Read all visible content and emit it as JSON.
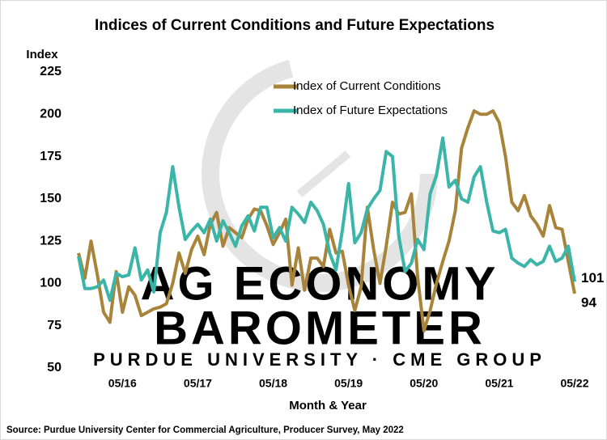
{
  "chart_data": {
    "type": "line",
    "title": "Indices of Current Conditions and Future Expectations",
    "y_label": "Index",
    "x_label": "Month & Year",
    "source": "Source: Purdue University Center for Commercial Agriculture, Producer Survey, May 2022",
    "watermark": [
      "AG ECONOMY",
      "BAROMETER",
      "PURDUE UNIVERSITY · CME GROUP"
    ],
    "categories": [
      null,
      null,
      null,
      null,
      null,
      null,
      null,
      "05/16",
      null,
      null,
      null,
      null,
      null,
      null,
      null,
      null,
      null,
      null,
      null,
      "05/17",
      null,
      null,
      null,
      null,
      null,
      null,
      null,
      null,
      null,
      null,
      null,
      "05/18",
      null,
      null,
      null,
      null,
      null,
      null,
      null,
      null,
      null,
      null,
      null,
      "05/19",
      null,
      null,
      null,
      null,
      null,
      null,
      null,
      null,
      null,
      null,
      null,
      "05/20",
      null,
      null,
      null,
      null,
      null,
      null,
      null,
      null,
      null,
      null,
      null,
      "05/21",
      null,
      null,
      null,
      null,
      null,
      null,
      null,
      null,
      null,
      null,
      null,
      "05/22"
    ],
    "series": [
      {
        "name": "Index of Current Conditions",
        "color": "#a8843a",
        "values": [
          118,
          103,
          125,
          105,
          83,
          77,
          107,
          83,
          98,
          93,
          81,
          83,
          85,
          86,
          88,
          100,
          118,
          106,
          120,
          128,
          117,
          135,
          142,
          122,
          133,
          130,
          127,
          138,
          144,
          143,
          134,
          123,
          130,
          138,
          99,
          121,
          96,
          115,
          115,
          110,
          132,
          118,
          119,
          99,
          84,
          98,
          145,
          120,
          100,
          122,
          148,
          141,
          142,
          153,
          104,
          72,
          84,
          100,
          113,
          125,
          143,
          180,
          192,
          202,
          200,
          200,
          202,
          195,
          175,
          148,
          143,
          152,
          140,
          135,
          128,
          146,
          133,
          132,
          113,
          94
        ]
      },
      {
        "name": "Index of Future Expectations",
        "color": "#3ab5a8",
        "values": [
          116,
          97,
          97,
          98,
          102,
          90,
          106,
          104,
          105,
          121,
          102,
          108,
          95,
          130,
          142,
          169,
          145,
          126,
          131,
          135,
          130,
          138,
          125,
          137,
          130,
          122,
          134,
          140,
          131,
          145,
          145,
          127,
          133,
          125,
          145,
          141,
          136,
          148,
          143,
          135,
          118,
          108,
          131,
          159,
          124,
          130,
          144,
          150,
          155,
          178,
          175,
          128,
          107,
          112,
          126,
          120,
          153,
          164,
          186,
          157,
          161,
          150,
          148,
          163,
          169,
          148,
          131,
          130,
          132,
          115,
          112,
          110,
          114,
          111,
          113,
          122,
          113,
          115,
          122,
          101
        ]
      }
    ],
    "ylim": [
      50,
      225
    ],
    "yticks": [
      50,
      75,
      100,
      125,
      150,
      175,
      200,
      225
    ],
    "legend": "top-center"
  }
}
